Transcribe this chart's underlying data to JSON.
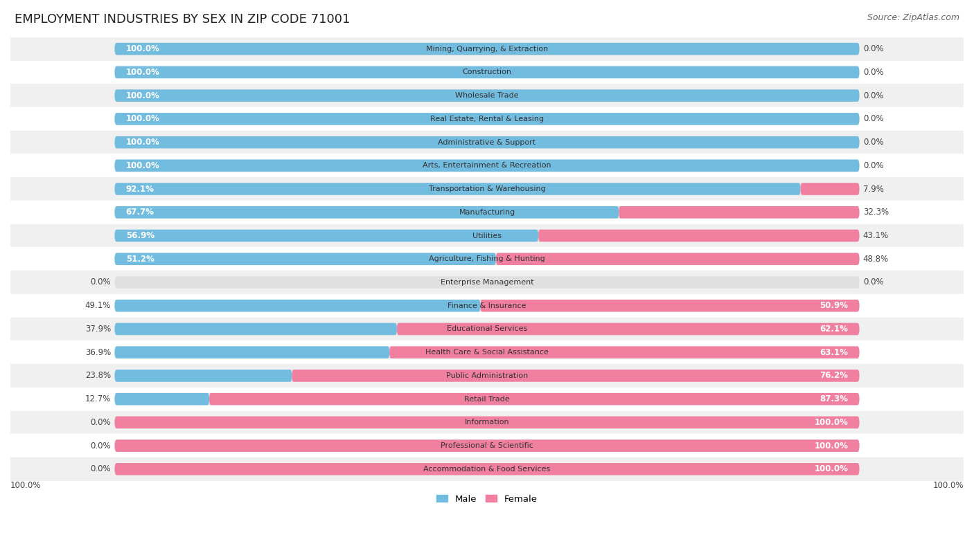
{
  "title": "EMPLOYMENT INDUSTRIES BY SEX IN ZIP CODE 71001",
  "source": "Source: ZipAtlas.com",
  "categories": [
    "Mining, Quarrying, & Extraction",
    "Construction",
    "Wholesale Trade",
    "Real Estate, Rental & Leasing",
    "Administrative & Support",
    "Arts, Entertainment & Recreation",
    "Transportation & Warehousing",
    "Manufacturing",
    "Utilities",
    "Agriculture, Fishing & Hunting",
    "Enterprise Management",
    "Finance & Insurance",
    "Educational Services",
    "Health Care & Social Assistance",
    "Public Administration",
    "Retail Trade",
    "Information",
    "Professional & Scientific",
    "Accommodation & Food Services"
  ],
  "male": [
    100.0,
    100.0,
    100.0,
    100.0,
    100.0,
    100.0,
    92.1,
    67.7,
    56.9,
    51.2,
    0.0,
    49.1,
    37.9,
    36.9,
    23.8,
    12.7,
    0.0,
    0.0,
    0.0
  ],
  "female": [
    0.0,
    0.0,
    0.0,
    0.0,
    0.0,
    0.0,
    7.9,
    32.3,
    43.1,
    48.8,
    0.0,
    50.9,
    62.1,
    63.1,
    76.2,
    87.3,
    100.0,
    100.0,
    100.0
  ],
  "male_color": "#72bce0",
  "female_color": "#f07fa0",
  "bg_color": "#ffffff",
  "row_alt_color": "#f0f0f0",
  "row_main_color": "#ffffff",
  "bar_bg_color": "#e0e0e0",
  "title_fontsize": 13,
  "source_fontsize": 9,
  "label_fontsize": 8.5,
  "cat_fontsize": 8,
  "bar_height": 0.52,
  "figsize": [
    14.06,
    7.76
  ]
}
